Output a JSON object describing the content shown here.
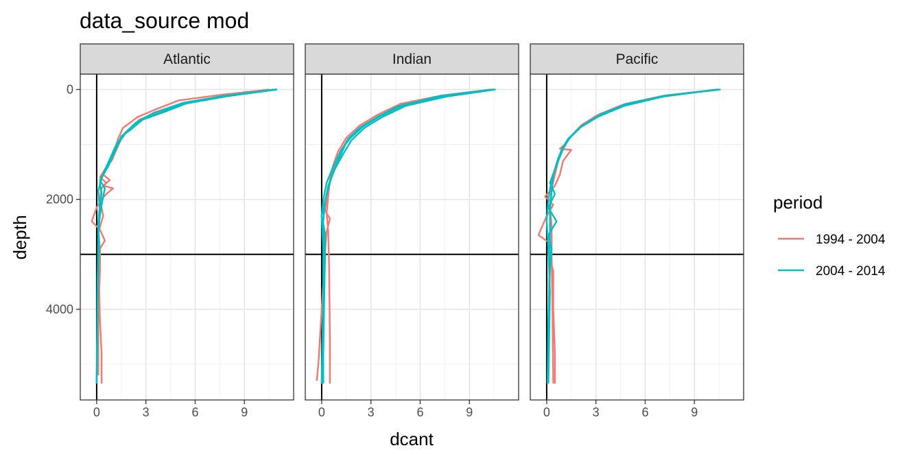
{
  "chart_data": {
    "type": "line",
    "title": "data_source mod",
    "xlabel": "dcant",
    "ylabel": "depth",
    "xlim": [
      -1.0,
      12.0
    ],
    "ylim_reversed": [
      5650,
      -280
    ],
    "x_ticks": [
      0,
      3,
      6,
      9
    ],
    "x_tick_labels": [
      "0",
      "3",
      "6",
      "9"
    ],
    "y_ticks": [
      0,
      2000,
      4000
    ],
    "y_tick_labels": [
      "0",
      "2000",
      "4000"
    ],
    "reference_lines": {
      "vertical_x": 0,
      "horizontal_depth": 3000
    },
    "grid": true,
    "legend": {
      "title": "period",
      "position": "right",
      "entries": [
        {
          "label": "1994 - 2004",
          "color": "#F8766D"
        },
        {
          "label": "2004 - 2014",
          "color": "#00BFC4"
        }
      ]
    },
    "panels": [
      {
        "name": "Atlantic",
        "series": [
          {
            "period": "1994 - 2004",
            "color": "#F8766D",
            "x": [
              10.5,
              7.5,
              5.0,
              3.7,
              2.5,
              1.6,
              1.3,
              1.1,
              1.0,
              0.6,
              0.4,
              0.8,
              0.4,
              1.0,
              0.6,
              0.3,
              0.0,
              -0.3,
              0.2,
              0.5,
              0.2,
              0.2,
              0.15,
              0.2,
              0.3,
              0.3
            ],
            "y": [
              0,
              100,
              200,
              350,
              500,
              700,
              900,
              1100,
              1250,
              1400,
              1550,
              1650,
              1750,
              1800,
              1900,
              2000,
              2150,
              2400,
              2550,
              2750,
              2900,
              3100,
              3600,
              4200,
              4800,
              5350
            ]
          },
          {
            "period": "1994 - 2004",
            "color": "#F8766D",
            "x": [
              11.0,
              8.0,
              5.5,
              3.8,
              2.6,
              1.9,
              1.5,
              1.2,
              0.9,
              0.5,
              0.2,
              0.6,
              0.3,
              0.2,
              0.4,
              0.1,
              0.2,
              0.2,
              0.1,
              0.1
            ],
            "y": [
              0,
              120,
              250,
              400,
              550,
              750,
              900,
              1100,
              1300,
              1450,
              1600,
              1700,
              1800,
              2000,
              2300,
              2600,
              2900,
              3300,
              4200,
              5200
            ]
          },
          {
            "period": "2004 - 2014",
            "color": "#00BFC4",
            "x": [
              11.0,
              8.0,
              5.5,
              4.2,
              2.8,
              2.0,
              1.5,
              1.3,
              1.0,
              0.7,
              0.4,
              0.2,
              0.3,
              0.2,
              0.1,
              0.15,
              0.1,
              0.05,
              0.0
            ],
            "y": [
              0,
              120,
              250,
              400,
              550,
              750,
              850,
              1000,
              1200,
              1400,
              1550,
              1700,
              1900,
              2100,
              2400,
              2800,
              3300,
              4200,
              5350
            ]
          },
          {
            "period": "2004 - 2014",
            "color": "#00BFC4",
            "x": [
              10.8,
              7.8,
              5.2,
              3.9,
              2.6,
              1.8,
              1.4,
              1.0,
              0.7,
              0.5,
              0.2,
              0.5,
              0.3,
              0.1,
              0.1,
              0.05,
              0.0
            ],
            "y": [
              0,
              130,
              270,
              420,
              570,
              770,
              950,
              1150,
              1350,
              1500,
              1650,
              1800,
              2100,
              2500,
              3000,
              4000,
              5350
            ]
          },
          {
            "period": "2004 - 2014",
            "color": "#00BFC4",
            "x": [
              10.9,
              7.9,
              5.3,
              3.5,
              2.4,
              1.7,
              1.2,
              0.9,
              0.6,
              0.3,
              0.1,
              0.2,
              0.1,
              0.05,
              0.0
            ],
            "y": [
              0,
              110,
              240,
              420,
              600,
              800,
              1000,
              1200,
              1400,
              1600,
              1850,
              2200,
              2700,
              3500,
              5350
            ]
          }
        ]
      },
      {
        "name": "Indian",
        "series": [
          {
            "period": "1994 - 2004",
            "color": "#F8766D",
            "x": [
              10.5,
              7.5,
              5.0,
              3.5,
              2.4,
              1.6,
              1.1,
              0.8,
              0.5,
              0.3,
              0.2,
              0.5,
              0.3,
              0.2,
              0.0,
              -0.2,
              -0.3
            ],
            "y": [
              0,
              120,
              280,
              480,
              680,
              900,
              1150,
              1400,
              1700,
              2000,
              2200,
              2350,
              2600,
              3000,
              4000,
              5000,
              5300
            ]
          },
          {
            "period": "1994 - 2004",
            "color": "#F8766D",
            "x": [
              10.3,
              7.3,
              4.8,
              3.4,
              2.3,
              1.5,
              1.0,
              0.7,
              0.5,
              0.4,
              0.3,
              0.4,
              0.45,
              0.5,
              0.5
            ],
            "y": [
              0,
              110,
              260,
              460,
              660,
              880,
              1130,
              1380,
              1650,
              1950,
              2250,
              2600,
              3200,
              4500,
              5350
            ]
          },
          {
            "period": "2004 - 2014",
            "color": "#00BFC4",
            "x": [
              10.5,
              7.5,
              5.0,
              3.6,
              2.5,
              1.7,
              1.2,
              0.7,
              0.3,
              0.1,
              0.0,
              0.05,
              0.1,
              0.1,
              0.05,
              0.05
            ],
            "y": [
              0,
              120,
              280,
              480,
              680,
              900,
              1100,
              1400,
              1700,
              2000,
              2300,
              2600,
              3000,
              3800,
              4800,
              5350
            ]
          },
          {
            "period": "2004 - 2014",
            "color": "#00BFC4",
            "x": [
              10.4,
              7.2,
              4.7,
              3.4,
              2.3,
              1.6,
              1.4,
              0.7,
              0.4,
              0.2,
              0.0,
              0.2,
              0.2,
              0.15,
              0.1,
              0.1
            ],
            "y": [
              0,
              120,
              300,
              500,
              700,
              900,
              1030,
              1500,
              1800,
              2050,
              2300,
              2600,
              3100,
              3900,
              4800,
              5350
            ]
          },
          {
            "period": "2004 - 2014",
            "color": "#00BFC4",
            "x": [
              10.6,
              7.6,
              5.1,
              3.7,
              2.6,
              1.8,
              1.3,
              0.8,
              0.4,
              0.2,
              0.1,
              0.1,
              0.1,
              0.0
            ],
            "y": [
              0,
              130,
              300,
              500,
              700,
              930,
              1180,
              1450,
              1750,
              2050,
              2400,
              2900,
              3700,
              5350
            ]
          }
        ]
      },
      {
        "name": "Pacific",
        "series": [
          {
            "period": "1994 - 2004",
            "color": "#F8766D",
            "x": [
              10.5,
              7.2,
              4.8,
              3.2,
              2.1,
              1.5,
              1.1,
              0.8,
              1.5,
              1.0,
              0.8,
              0.5,
              -0.1,
              0.4,
              0.0,
              -0.5,
              0.2,
              0.1,
              0.4,
              0.4,
              0.5,
              0.5
            ],
            "y": [
              0,
              110,
              260,
              450,
              650,
              850,
              1000,
              1080,
              1100,
              1300,
              1550,
              1750,
              1950,
              2100,
              2300,
              2650,
              2800,
              3000,
              3300,
              4000,
              4800,
              5350
            ]
          },
          {
            "period": "1994 - 2004",
            "color": "#F8766D",
            "x": [
              10.4,
              7.0,
              4.6,
              3.0,
              2.0,
              1.4,
              1.0,
              0.7,
              0.5,
              0.3,
              0.2,
              0.3,
              0.3,
              0.35,
              0.4
            ],
            "y": [
              0,
              120,
              280,
              480,
              680,
              880,
              1080,
              1300,
              1550,
              1800,
              2100,
              2500,
              3000,
              4000,
              5350
            ]
          },
          {
            "period": "2004 - 2014",
            "color": "#00BFC4",
            "x": [
              10.6,
              7.3,
              4.9,
              3.3,
              2.2,
              1.5,
              1.0,
              0.7,
              0.5,
              0.2,
              0.5,
              0.1,
              0.6,
              0.1,
              0.3,
              0.2,
              0.1,
              0.05
            ],
            "y": [
              0,
              110,
              260,
              450,
              650,
              850,
              1050,
              1250,
              1450,
              1700,
              1900,
              2150,
              2400,
              2650,
              2900,
              3300,
              4200,
              5350
            ]
          },
          {
            "period": "2004 - 2014",
            "color": "#00BFC4",
            "x": [
              10.5,
              7.2,
              4.8,
              3.2,
              2.1,
              1.4,
              1.0,
              0.7,
              0.4,
              0.3,
              0.2,
              0.2,
              0.15,
              0.1
            ],
            "y": [
              0,
              120,
              280,
              480,
              680,
              880,
              1080,
              1300,
              1550,
              1850,
              2200,
              2700,
              3500,
              5350
            ]
          },
          {
            "period": "2004 - 2014",
            "color": "#00BFC4",
            "x": [
              10.4,
              7.1,
              4.7,
              3.1,
              2.0,
              1.3,
              0.9,
              0.6,
              0.3,
              0.1,
              0.0,
              0.1,
              0.2,
              0.1
            ],
            "y": [
              0,
              130,
              300,
              500,
              700,
              900,
              1100,
              1350,
              1650,
              2000,
              2400,
              2900,
              3700,
              5350
            ]
          }
        ]
      }
    ]
  }
}
